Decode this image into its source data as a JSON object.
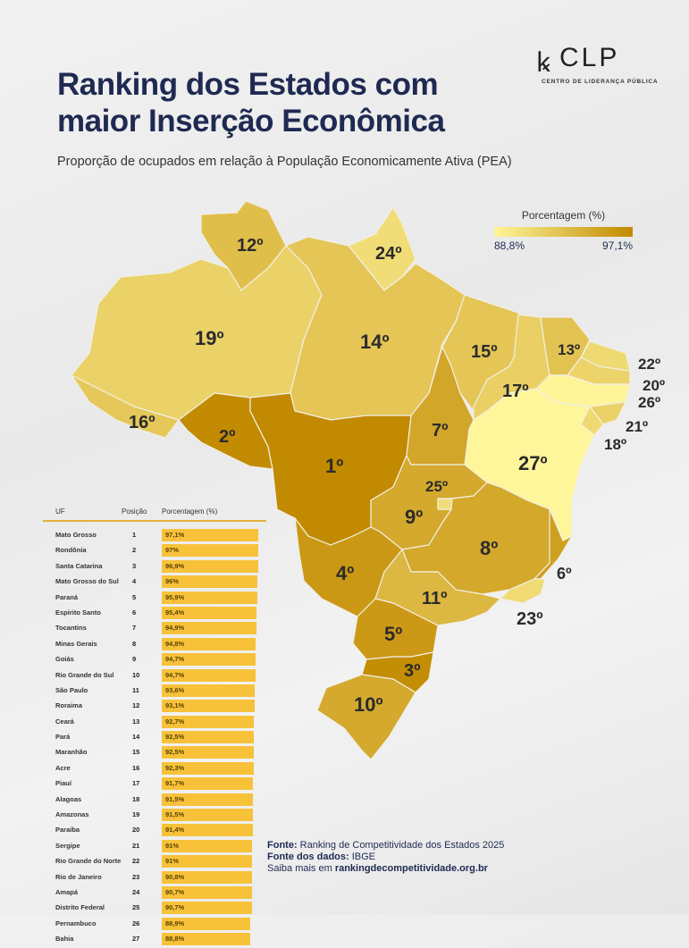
{
  "header": {
    "title_line1": "Ranking dos Estados com",
    "title_line2": "maior Inserção Econômica",
    "subtitle": "Proporção de ocupados em relação à População Economicamente Ativa (PEA)"
  },
  "logo": {
    "name": "CLP",
    "tagline": "CENTRO DE LIDERANÇA PÚBLICA"
  },
  "legend": {
    "title": "Porcentagem (%)",
    "min_label": "88,8%",
    "max_label": "97,1%",
    "min": 88.8,
    "max": 97.1,
    "color_low": "#fff59a",
    "color_high": "#c28a00"
  },
  "table": {
    "headers": {
      "uf": "UF",
      "pos": "Posição",
      "pct": "Porcentagem (%)"
    },
    "rows": [
      {
        "uf": "Mato Grosso",
        "pos": "1",
        "pct": "97,1%",
        "value": 97.1,
        "rank": "1º"
      },
      {
        "uf": "Rondônia",
        "pos": "2",
        "pct": "97%",
        "value": 97.0,
        "rank": "2º"
      },
      {
        "uf": "Santa Catarina",
        "pos": "3",
        "pct": "96,9%",
        "value": 96.9,
        "rank": "3º"
      },
      {
        "uf": "Mato Grosso do Sul",
        "pos": "4",
        "pct": "96%",
        "value": 96.0,
        "rank": "4º"
      },
      {
        "uf": "Paraná",
        "pos": "5",
        "pct": "95,9%",
        "value": 95.9,
        "rank": "5º"
      },
      {
        "uf": "Espírito Santo",
        "pos": "6",
        "pct": "95,4%",
        "value": 95.4,
        "rank": "6º"
      },
      {
        "uf": "Tocantins",
        "pos": "7",
        "pct": "94,9%",
        "value": 94.9,
        "rank": "7º"
      },
      {
        "uf": "Minas Gerais",
        "pos": "8",
        "pct": "94,8%",
        "value": 94.8,
        "rank": "8º"
      },
      {
        "uf": "Goiás",
        "pos": "9",
        "pct": "94,7%",
        "value": 94.7,
        "rank": "9º"
      },
      {
        "uf": "Rio Grande do Sul",
        "pos": "10",
        "pct": "94,7%",
        "value": 94.7,
        "rank": "10º"
      },
      {
        "uf": "São Paulo",
        "pos": "11",
        "pct": "93,6%",
        "value": 93.6,
        "rank": "11º"
      },
      {
        "uf": "Roraima",
        "pos": "12",
        "pct": "93,1%",
        "value": 93.1,
        "rank": "12º"
      },
      {
        "uf": "Ceará",
        "pos": "13",
        "pct": "92,7%",
        "value": 92.7,
        "rank": "13º"
      },
      {
        "uf": "Pará",
        "pos": "14",
        "pct": "92,5%",
        "value": 92.5,
        "rank": "14º"
      },
      {
        "uf": "Maranhão",
        "pos": "15",
        "pct": "92,5%",
        "value": 92.5,
        "rank": "15º"
      },
      {
        "uf": "Acre",
        "pos": "16",
        "pct": "92,3%",
        "value": 92.3,
        "rank": "16º"
      },
      {
        "uf": "Piauí",
        "pos": "17",
        "pct": "91,7%",
        "value": 91.7,
        "rank": "17º"
      },
      {
        "uf": "Alagoas",
        "pos": "18",
        "pct": "91,5%",
        "value": 91.5,
        "rank": "18º"
      },
      {
        "uf": "Amazonas",
        "pos": "19",
        "pct": "91,5%",
        "value": 91.5,
        "rank": "19º"
      },
      {
        "uf": "Paraíba",
        "pos": "20",
        "pct": "91,4%",
        "value": 91.4,
        "rank": "20º"
      },
      {
        "uf": "Sergipe",
        "pos": "21",
        "pct": "91%",
        "value": 91.0,
        "rank": "21º"
      },
      {
        "uf": "Rio Grande do Norte",
        "pos": "22",
        "pct": "91%",
        "value": 91.0,
        "rank": "22º"
      },
      {
        "uf": "Rio de Janeiro",
        "pos": "23",
        "pct": "90,8%",
        "value": 90.8,
        "rank": "23º"
      },
      {
        "uf": "Amapá",
        "pos": "24",
        "pct": "90,7%",
        "value": 90.7,
        "rank": "24º"
      },
      {
        "uf": "Distrito Federal",
        "pos": "25",
        "pct": "90,7%",
        "value": 90.7,
        "rank": "25º"
      },
      {
        "uf": "Pernambuco",
        "pos": "26",
        "pct": "88,9%",
        "value": 88.9,
        "rank": "26º"
      },
      {
        "uf": "Bahia",
        "pos": "27",
        "pct": "88,8%",
        "value": 88.8,
        "rank": "27º"
      }
    ]
  },
  "source": {
    "fonte_label": "Fonte:",
    "fonte": " Ranking de Competitividade dos Estados 2025",
    "dados_label": "Fonte dos dados:",
    "dados": " IBGE",
    "more": "Saiba mais em ",
    "link": "rankingdecompetitividade.org.br"
  }
}
